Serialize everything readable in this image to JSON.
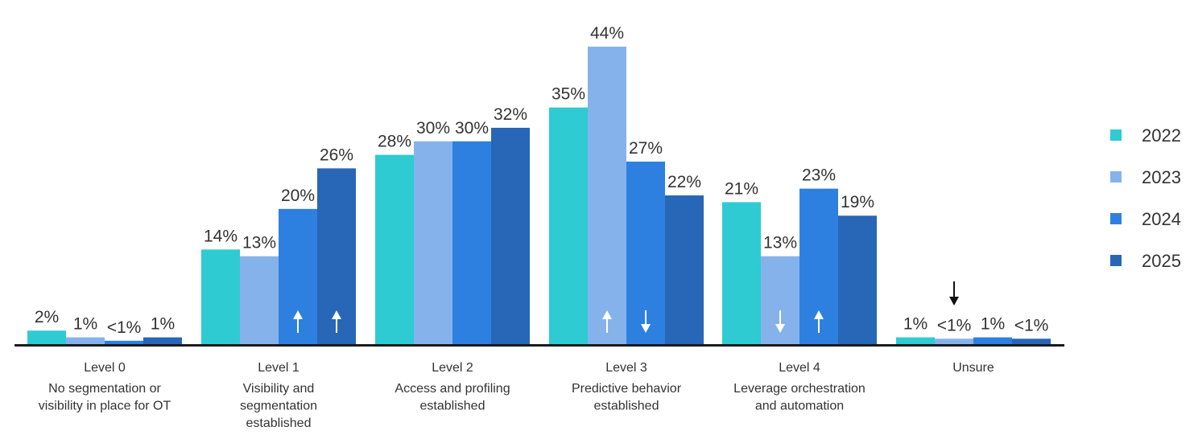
{
  "chart_data": {
    "type": "bar",
    "categories": [
      {
        "title": "Level 0",
        "description": [
          "No segmentation or",
          "visibility in place for OT"
        ]
      },
      {
        "title": "Level 1",
        "description": [
          "Visibility and",
          "segmentation",
          "established"
        ]
      },
      {
        "title": "Level 2",
        "description": [
          "Access and profiling",
          "established"
        ]
      },
      {
        "title": "Level 3",
        "description": [
          "Predictive behavior",
          "established"
        ]
      },
      {
        "title": "Level 4",
        "description": [
          "Leverage orchestration",
          "and automation"
        ]
      },
      {
        "title": "Unsure",
        "description": []
      }
    ],
    "series": [
      {
        "name": "2022",
        "color": "#2ecbd2",
        "values": [
          2,
          14,
          28,
          35,
          21,
          1
        ],
        "labels": [
          "2%",
          "14%",
          "28%",
          "35%",
          "21%",
          "1%"
        ]
      },
      {
        "name": "2023",
        "color": "#86b2ec",
        "values": [
          1,
          13,
          30,
          44,
          13,
          0.8
        ],
        "labels": [
          "1%",
          "13%",
          "30%",
          "44%",
          "13%",
          "<1%"
        ]
      },
      {
        "name": "2024",
        "color": "#2e80e0",
        "values": [
          0.5,
          20,
          30,
          27,
          23,
          1
        ],
        "labels": [
          "<1%",
          "20%",
          "30%",
          "27%",
          "23%",
          "1%"
        ]
      },
      {
        "name": "2025",
        "color": "#2866b7",
        "values": [
          1,
          26,
          32,
          22,
          19,
          0.8
        ],
        "labels": [
          "1%",
          "26%",
          "32%",
          "22%",
          "19%",
          "<1%"
        ]
      }
    ],
    "annotations": [
      {
        "category": 1,
        "series": 2,
        "arrow": "up",
        "color": "#ffffff"
      },
      {
        "category": 1,
        "series": 3,
        "arrow": "up",
        "color": "#ffffff"
      },
      {
        "category": 3,
        "series": 1,
        "arrow": "up",
        "color": "#ffffff"
      },
      {
        "category": 3,
        "series": 2,
        "arrow": "down",
        "color": "#ffffff"
      },
      {
        "category": 4,
        "series": 1,
        "arrow": "down",
        "color": "#ffffff"
      },
      {
        "category": 4,
        "series": 2,
        "arrow": "up",
        "color": "#ffffff"
      },
      {
        "category": 5,
        "series": 1,
        "arrow": "down",
        "color": "#111111",
        "placement": "above-label"
      }
    ],
    "ylim": [
      0,
      46
    ],
    "grid": false,
    "legend": "right",
    "axis_color": "#1a1a1a"
  }
}
